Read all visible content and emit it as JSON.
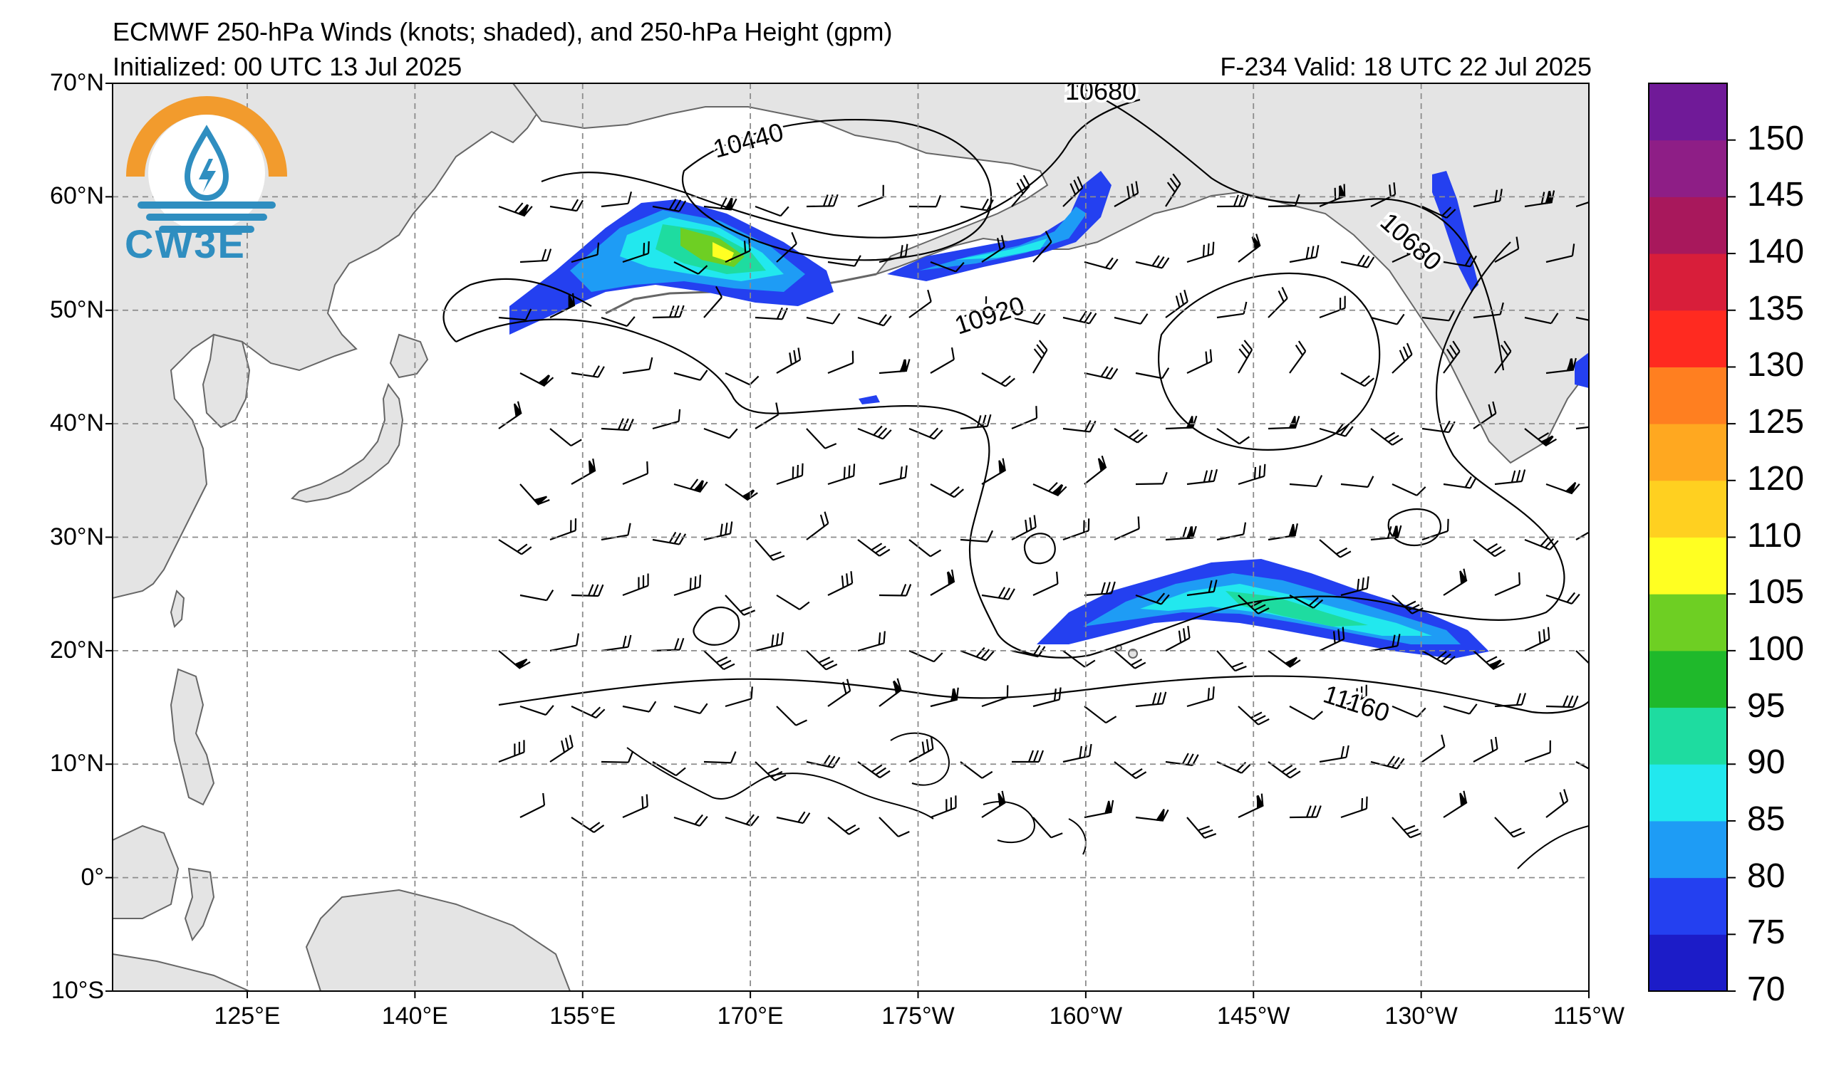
{
  "header": {
    "title": "ECMWF 250-hPa Winds (knots; shaded), and 250-hPa Height (gpm)",
    "initialized": "Initialized: 00 UTC 13 Jul 2025",
    "valid": "F-234  Valid: 18 UTC 22 Jul 2025"
  },
  "logo": {
    "text": "CW3E",
    "icon": "water-drop-sun-logo-icon"
  },
  "map": {
    "latitude_labels": [
      "70°N",
      "60°N",
      "50°N",
      "40°N",
      "30°N",
      "20°N",
      "10°N",
      "0°",
      "10°S"
    ],
    "longitude_labels": [
      "125°E",
      "140°E",
      "155°E",
      "170°E",
      "175°W",
      "160°W",
      "145°W",
      "130°W",
      "115°W"
    ],
    "contour_labels": [
      "10440",
      "10680",
      "10920",
      "10680",
      "11160"
    ],
    "land_color": "#e4e4e4",
    "coastline_color": "#666666"
  },
  "colorbar": {
    "labels": [
      "150",
      "145",
      "140",
      "135",
      "130",
      "125",
      "120",
      "110",
      "105",
      "100",
      "95",
      "90",
      "85",
      "80",
      "75",
      "70"
    ],
    "colors": [
      "#1c1cc8",
      "#2440f0",
      "#1e9cf5",
      "#22e8ee",
      "#1edca0",
      "#1fb92b",
      "#6ecf23",
      "#ffff22",
      "#ffd020",
      "#ffa820",
      "#ff7f20",
      "#ff2a20",
      "#d81e3a",
      "#a8185c",
      "#8e1e86",
      "#701a98"
    ]
  }
}
